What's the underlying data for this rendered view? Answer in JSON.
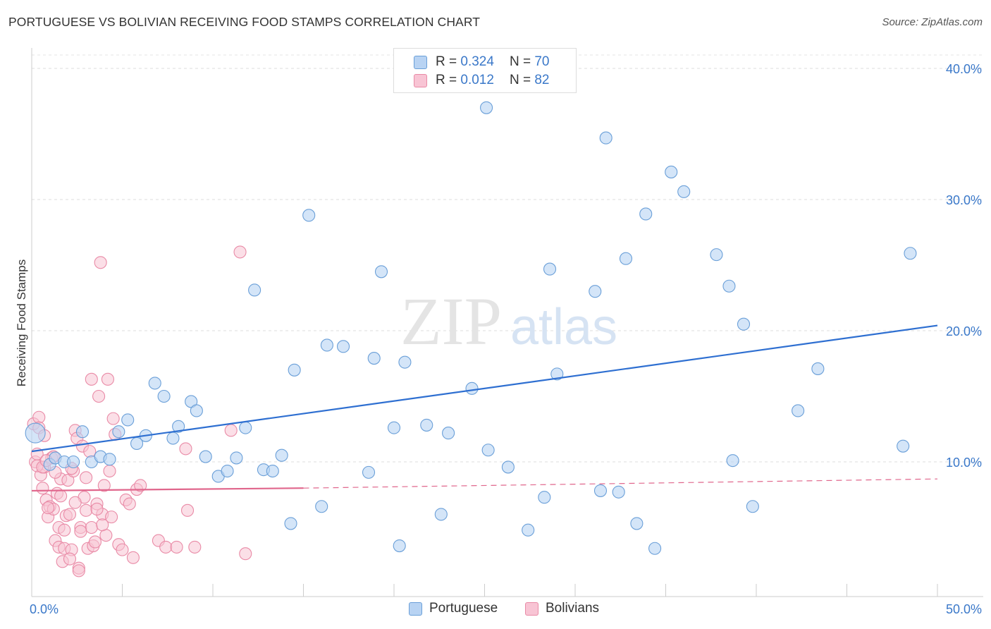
{
  "title": "PORTUGUESE VS BOLIVIAN RECEIVING FOOD STAMPS CORRELATION CHART",
  "source": "Source: ZipAtlas.com",
  "watermark": {
    "zip": "ZIP",
    "atlas": "atlas"
  },
  "legend": {
    "r_label": "R =",
    "n_label": "N =",
    "portuguese": {
      "r": "0.324",
      "n": "70"
    },
    "bolivians": {
      "r": "0.012",
      "n": "82"
    }
  },
  "colors": {
    "portuguese_fill": "#b8d3f3",
    "portuguese_stroke": "#6a9fd8",
    "portuguese_line": "#2e6fd1",
    "bolivian_fill": "#f8c4d4",
    "bolivian_stroke": "#e98aa6",
    "bolivian_line": "#e0668c",
    "axis_text": "#3a78c9"
  },
  "chart_data": {
    "type": "scatter",
    "title": "PORTUGUESE VS BOLIVIAN RECEIVING FOOD STAMPS CORRELATION CHART",
    "xlabel": "",
    "ylabel": "Receiving Food Stamps",
    "xlim": [
      0,
      50
    ],
    "ylim": [
      0,
      42
    ],
    "x_tick_labels": [
      "0.0%",
      "50.0%"
    ],
    "y_ticks": [
      10,
      20,
      30,
      40
    ],
    "y_tick_labels": [
      "10.0%",
      "20.0%",
      "30.0%",
      "40.0%"
    ],
    "grid": true,
    "legend_position": "top-center",
    "series": [
      {
        "name": "Portuguese",
        "trend": {
          "x": [
            0,
            50
          ],
          "y": [
            10.8,
            20.4
          ],
          "style": "solid"
        },
        "points": [
          [
            0.2,
            12.2
          ],
          [
            1.0,
            9.8
          ],
          [
            1.3,
            10.3
          ],
          [
            1.8,
            10.0
          ],
          [
            2.3,
            10.0
          ],
          [
            2.8,
            12.3
          ],
          [
            3.3,
            10.0
          ],
          [
            3.8,
            10.4
          ],
          [
            4.3,
            10.2
          ],
          [
            4.8,
            12.3
          ],
          [
            5.3,
            13.2
          ],
          [
            5.8,
            11.4
          ],
          [
            6.3,
            12.0
          ],
          [
            6.8,
            16.0
          ],
          [
            7.3,
            15.0
          ],
          [
            7.8,
            11.8
          ],
          [
            8.1,
            12.7
          ],
          [
            8.8,
            14.6
          ],
          [
            9.1,
            13.9
          ],
          [
            9.6,
            10.4
          ],
          [
            10.3,
            8.9
          ],
          [
            10.8,
            9.3
          ],
          [
            11.3,
            10.3
          ],
          [
            11.8,
            12.6
          ],
          [
            12.3,
            23.1
          ],
          [
            12.8,
            9.4
          ],
          [
            13.3,
            9.3
          ],
          [
            13.8,
            10.5
          ],
          [
            14.3,
            5.3
          ],
          [
            14.5,
            17.0
          ],
          [
            15.3,
            28.8
          ],
          [
            16.0,
            6.6
          ],
          [
            16.3,
            18.9
          ],
          [
            17.2,
            18.8
          ],
          [
            18.6,
            9.2
          ],
          [
            18.9,
            17.9
          ],
          [
            19.3,
            24.5
          ],
          [
            20.0,
            12.6
          ],
          [
            20.3,
            3.6
          ],
          [
            20.6,
            17.6
          ],
          [
            21.8,
            12.8
          ],
          [
            22.6,
            6.0
          ],
          [
            23.0,
            12.2
          ],
          [
            24.3,
            15.6
          ],
          [
            25.1,
            37.0
          ],
          [
            25.2,
            10.9
          ],
          [
            26.3,
            9.6
          ],
          [
            27.4,
            4.8
          ],
          [
            28.3,
            7.3
          ],
          [
            28.6,
            24.7
          ],
          [
            29.0,
            16.7
          ],
          [
            31.1,
            23.0
          ],
          [
            31.4,
            7.8
          ],
          [
            31.7,
            34.7
          ],
          [
            32.4,
            7.7
          ],
          [
            32.8,
            25.5
          ],
          [
            33.4,
            5.3
          ],
          [
            33.9,
            28.9
          ],
          [
            34.4,
            3.4
          ],
          [
            35.3,
            32.1
          ],
          [
            36.0,
            30.6
          ],
          [
            37.8,
            25.8
          ],
          [
            38.5,
            23.4
          ],
          [
            38.7,
            10.1
          ],
          [
            39.3,
            20.5
          ],
          [
            39.8,
            6.6
          ],
          [
            42.3,
            13.9
          ],
          [
            43.4,
            17.1
          ],
          [
            48.1,
            11.2
          ],
          [
            48.5,
            25.9
          ]
        ]
      },
      {
        "name": "Bolivians",
        "trend": {
          "x": [
            0,
            15
          ],
          "y": [
            7.8,
            8.0
          ],
          "style": "solid",
          "dashed_to": [
            50,
            8.7
          ]
        },
        "points": [
          [
            0.1,
            12.9
          ],
          [
            0.2,
            10.0
          ],
          [
            0.3,
            10.6
          ],
          [
            0.4,
            13.4
          ],
          [
            0.5,
            9.0
          ],
          [
            0.6,
            8.0
          ],
          [
            0.7,
            9.6
          ],
          [
            0.8,
            7.1
          ],
          [
            0.9,
            5.8
          ],
          [
            1.0,
            6.6
          ],
          [
            1.1,
            10.3
          ],
          [
            1.2,
            6.4
          ],
          [
            1.3,
            4.0
          ],
          [
            1.4,
            7.6
          ],
          [
            1.5,
            3.5
          ],
          [
            1.6,
            8.7
          ],
          [
            1.7,
            2.4
          ],
          [
            1.8,
            3.4
          ],
          [
            1.9,
            5.9
          ],
          [
            2.0,
            8.6
          ],
          [
            2.1,
            6.0
          ],
          [
            2.2,
            3.3
          ],
          [
            2.3,
            9.3
          ],
          [
            2.4,
            12.4
          ],
          [
            2.5,
            11.8
          ],
          [
            2.6,
            1.9
          ],
          [
            2.7,
            5.0
          ],
          [
            2.8,
            11.2
          ],
          [
            2.9,
            7.3
          ],
          [
            3.0,
            6.3
          ],
          [
            3.1,
            3.4
          ],
          [
            3.2,
            10.8
          ],
          [
            3.3,
            5.0
          ],
          [
            3.4,
            3.6
          ],
          [
            3.5,
            3.9
          ],
          [
            3.6,
            6.8
          ],
          [
            3.7,
            15.0
          ],
          [
            3.8,
            25.2
          ],
          [
            3.9,
            6.0
          ],
          [
            4.0,
            8.2
          ],
          [
            4.1,
            4.4
          ],
          [
            4.2,
            16.3
          ],
          [
            4.3,
            9.3
          ],
          [
            4.4,
            5.8
          ],
          [
            4.5,
            13.3
          ],
          [
            4.6,
            12.1
          ],
          [
            4.8,
            3.7
          ],
          [
            5.0,
            3.3
          ],
          [
            5.2,
            7.1
          ],
          [
            5.4,
            6.8
          ],
          [
            5.6,
            2.7
          ],
          [
            5.8,
            7.9
          ],
          [
            6.0,
            8.2
          ],
          [
            7.0,
            4.0
          ],
          [
            7.4,
            3.5
          ],
          [
            8.0,
            3.5
          ],
          [
            8.5,
            11.0
          ],
          [
            8.6,
            6.3
          ],
          [
            9.0,
            3.5
          ],
          [
            11.0,
            12.4
          ],
          [
            11.5,
            26.0
          ],
          [
            11.8,
            3.0
          ],
          [
            0.3,
            9.7
          ],
          [
            0.6,
            9.6
          ],
          [
            0.9,
            6.5
          ],
          [
            1.2,
            10.4
          ],
          [
            1.5,
            5.0
          ],
          [
            1.8,
            4.8
          ],
          [
            2.1,
            2.6
          ],
          [
            2.4,
            6.9
          ],
          [
            2.7,
            4.7
          ],
          [
            3.0,
            8.8
          ],
          [
            3.3,
            16.3
          ],
          [
            3.6,
            6.4
          ],
          [
            3.9,
            5.2
          ],
          [
            0.4,
            12.6
          ],
          [
            0.8,
            10.1
          ],
          [
            1.6,
            7.4
          ],
          [
            2.2,
            9.5
          ],
          [
            2.6,
            1.7
          ],
          [
            1.3,
            9.2
          ],
          [
            0.7,
            12.0
          ]
        ]
      }
    ]
  },
  "bottom_legend": {
    "portuguese": "Portuguese",
    "bolivians": "Bolivians"
  }
}
